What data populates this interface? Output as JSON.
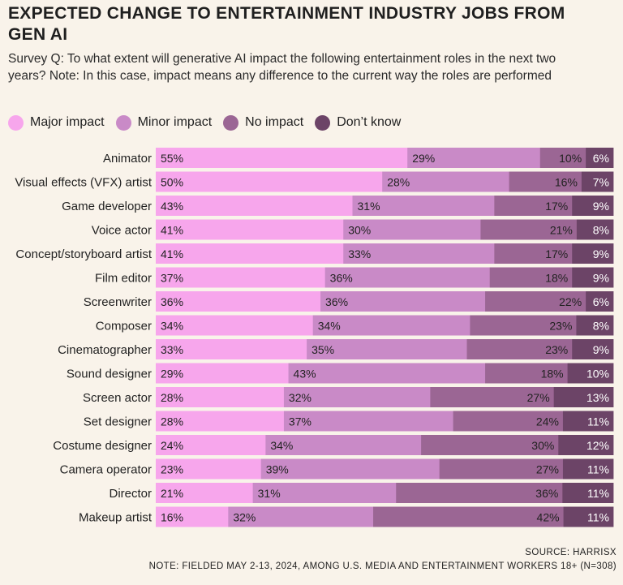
{
  "chart_data": {
    "type": "bar",
    "orientation": "horizontal",
    "stacked": true,
    "title": "EXPECTED CHANGE TO ENTERTAINMENT INDUSTRY JOBS FROM GEN AI",
    "subtitle": "Survey Q: To what extent will generative AI impact the following entertainment roles in the next two years? Note: In this case, impact means any difference to the current way the roles are performed",
    "unit": "%",
    "legend_placement": "top-left",
    "categories": [
      "Animator",
      "Visual effects (VFX) artist",
      "Game developer",
      "Voice actor",
      "Concept/storyboard artist",
      "Film editor",
      "Screenwriter",
      "Composer",
      "Cinematographer",
      "Sound designer",
      "Screen actor",
      "Set designer",
      "Costume designer",
      "Camera operator",
      "Director",
      "Makeup artist"
    ],
    "series": [
      {
        "name": "Major impact",
        "color": "#f7a6ec",
        "values": [
          55,
          50,
          43,
          41,
          41,
          37,
          36,
          34,
          33,
          29,
          28,
          28,
          24,
          23,
          21,
          16
        ]
      },
      {
        "name": "Minor impact",
        "color": "#c98ac7",
        "values": [
          29,
          28,
          31,
          30,
          33,
          36,
          36,
          34,
          35,
          43,
          32,
          37,
          34,
          39,
          31,
          32
        ]
      },
      {
        "name": "No impact",
        "color": "#9b6694",
        "values": [
          10,
          16,
          17,
          21,
          17,
          18,
          22,
          23,
          23,
          18,
          27,
          24,
          30,
          27,
          36,
          42
        ]
      },
      {
        "name": "Don’t know",
        "color": "#6c4467",
        "values": [
          6,
          7,
          9,
          8,
          9,
          9,
          6,
          8,
          9,
          10,
          13,
          11,
          12,
          11,
          11,
          11
        ]
      }
    ],
    "source": "SOURCE: HARRISX",
    "note": "NOTE: FIELDED MAY 2-13, 2024, AMONG U.S. MEDIA AND ENTERTAINMENT WORKERS 18+ (N=308)"
  }
}
